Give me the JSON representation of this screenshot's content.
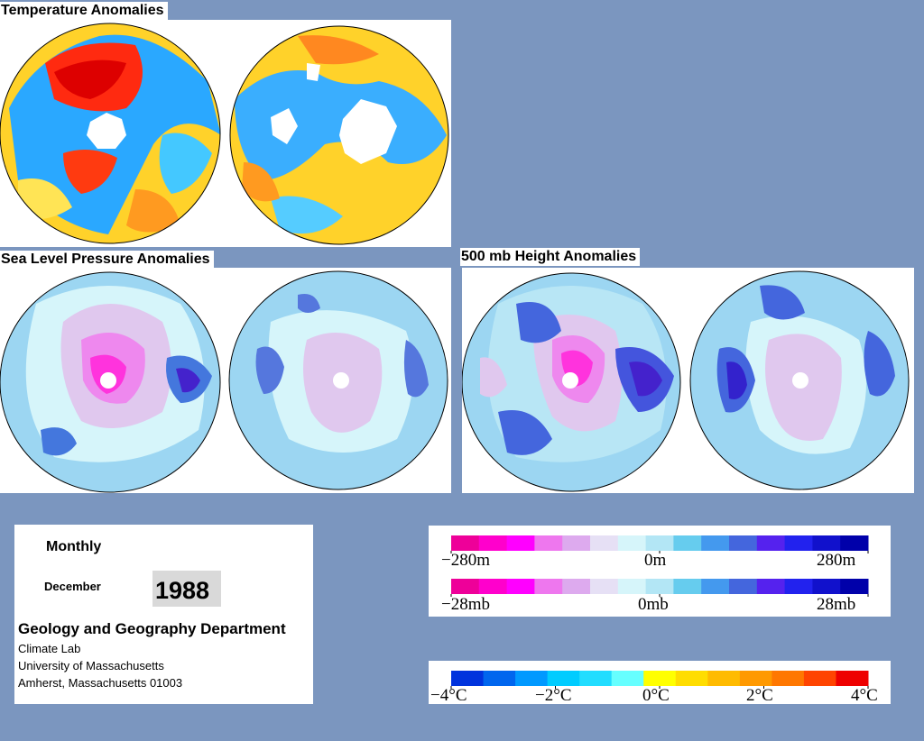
{
  "titles": {
    "temperature": "Temperature Anomalies",
    "slp": "Sea Level Pressure Anomalies",
    "height": "500 mb Height Anomalies"
  },
  "info": {
    "period": "Monthly",
    "month": "December",
    "year": "1988",
    "department": "Geology and Geography Department",
    "lab": "Climate Lab",
    "university": "University of Massachusetts",
    "address": "Amherst, Massachusetts 01003"
  },
  "legend_height": {
    "left": "−280m",
    "mid": "0m",
    "right": "280m"
  },
  "legend_pressure": {
    "left": "−28mb",
    "mid": "0mb",
    "right": "28mb"
  },
  "legend_temp": {
    "labels": [
      "−4°C",
      "−2°C",
      "0°C",
      "2°C",
      "4°C"
    ]
  },
  "colors": {
    "background": "#7b96bf",
    "pressure_scale": [
      "#ee0099",
      "#ff00cc",
      "#ff00ff",
      "#ee77ee",
      "#ddaaee",
      "#e6e0f5",
      "#d6f5fa",
      "#b3e6f5",
      "#66ccee",
      "#4499ee",
      "#4466dd",
      "#5522ee",
      "#2222ee",
      "#1111cc",
      "#0000aa"
    ],
    "temp_scale": [
      "#0033dd",
      "#0066ee",
      "#0099ff",
      "#00ccff",
      "#22ddff",
      "#66ffff",
      "#ffff00",
      "#ffdd00",
      "#ffbb00",
      "#ff9900",
      "#ff7700",
      "#ff4400",
      "#ee0000"
    ]
  }
}
